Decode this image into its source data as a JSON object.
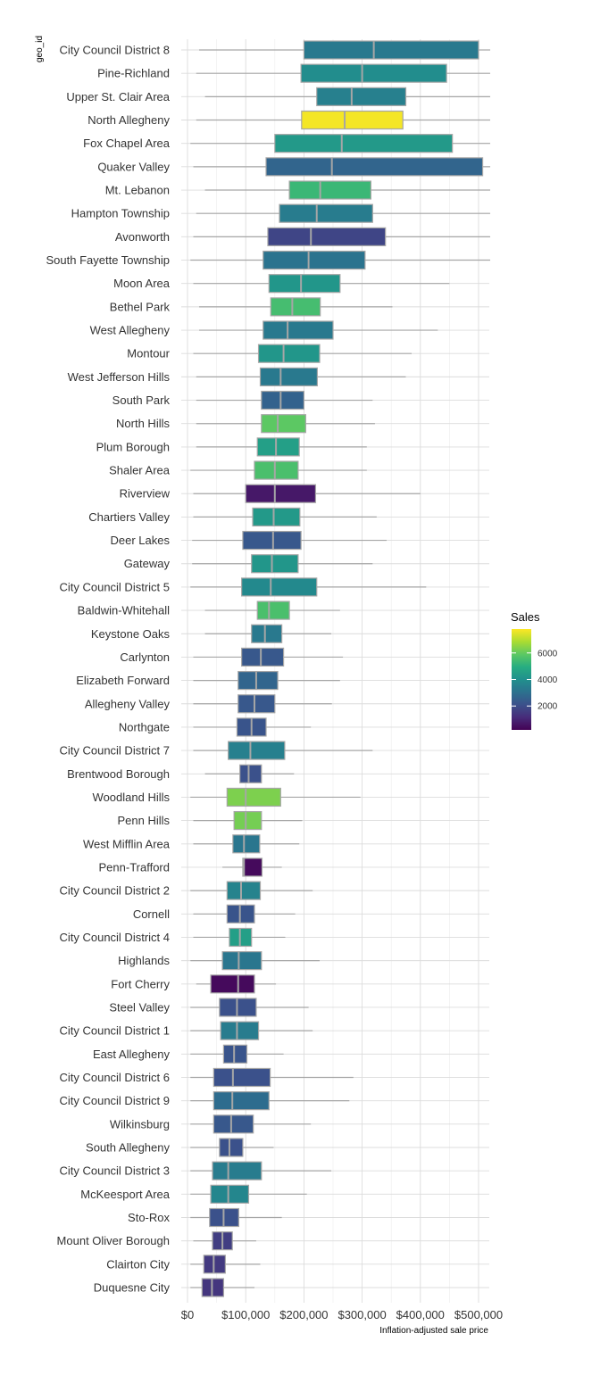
{
  "chart_data": {
    "type": "boxplot",
    "title": "",
    "xlabel": "Inflation-adjusted sale price",
    "ylabel": "geo_id",
    "xlim": [
      0,
      520000
    ],
    "x_ticks": [
      0,
      100000,
      200000,
      300000,
      400000,
      500000
    ],
    "x_tick_labels": [
      "$0",
      "$100,000",
      "$200,000",
      "$300,000",
      "$400,000",
      "$500,000"
    ],
    "grid": true,
    "legend": {
      "title": "Sales",
      "position": "right",
      "type": "colorbar",
      "palette": "viridis",
      "min": 200,
      "max": 7800,
      "ticks": [
        2000,
        4000,
        6000
      ],
      "tick_labels": [
        "2000",
        "4000",
        "6000"
      ]
    },
    "series": [
      {
        "name": "City Council District 8",
        "whisker_low": 20000,
        "q1": 200000,
        "median": 320000,
        "q3": 500000,
        "whisker_high": 520000,
        "sales": 3300
      },
      {
        "name": "Pine-Richland",
        "whisker_low": 15000,
        "q1": 195000,
        "median": 300000,
        "q3": 445000,
        "whisker_high": 520000,
        "sales": 3900
      },
      {
        "name": "Upper St. Clair Area",
        "whisker_low": 30000,
        "q1": 222000,
        "median": 282000,
        "q3": 375000,
        "whisker_high": 520000,
        "sales": 3500
      },
      {
        "name": "North Allegheny",
        "whisker_low": 15000,
        "q1": 196000,
        "median": 270000,
        "q3": 370000,
        "whisker_high": 520000,
        "sales": 7700
      },
      {
        "name": "Fox Chapel Area",
        "whisker_low": 5000,
        "q1": 150000,
        "median": 265000,
        "q3": 455000,
        "whisker_high": 520000,
        "sales": 4300
      },
      {
        "name": "Quaker Valley",
        "whisker_low": 10000,
        "q1": 135000,
        "median": 248000,
        "q3": 507000,
        "whisker_high": 520000,
        "sales": 2700
      },
      {
        "name": "Mt. Lebanon",
        "whisker_low": 30000,
        "q1": 175000,
        "median": 228000,
        "q3": 315000,
        "whisker_high": 520000,
        "sales": 5300
      },
      {
        "name": "Hampton Township",
        "whisker_low": 15000,
        "q1": 158000,
        "median": 222000,
        "q3": 318000,
        "whisker_high": 520000,
        "sales": 3400
      },
      {
        "name": "Avonworth",
        "whisker_low": 10000,
        "q1": 138000,
        "median": 212000,
        "q3": 340000,
        "whisker_high": 520000,
        "sales": 1800
      },
      {
        "name": "South Fayette Township",
        "whisker_low": 5000,
        "q1": 130000,
        "median": 208000,
        "q3": 305000,
        "whisker_high": 520000,
        "sales": 3100
      },
      {
        "name": "Moon Area",
        "whisker_low": 10000,
        "q1": 140000,
        "median": 195000,
        "q3": 262000,
        "whisker_high": 450000,
        "sales": 4200
      },
      {
        "name": "Bethel Park",
        "whisker_low": 20000,
        "q1": 143000,
        "median": 180000,
        "q3": 228000,
        "whisker_high": 352000,
        "sales": 5500
      },
      {
        "name": "West Allegheny",
        "whisker_low": 20000,
        "q1": 130000,
        "median": 172000,
        "q3": 250000,
        "whisker_high": 430000,
        "sales": 3300
      },
      {
        "name": "Montour",
        "whisker_low": 10000,
        "q1": 122000,
        "median": 165000,
        "q3": 227000,
        "whisker_high": 385000,
        "sales": 4200
      },
      {
        "name": "West Jefferson Hills",
        "whisker_low": 15000,
        "q1": 125000,
        "median": 160000,
        "q3": 223000,
        "whisker_high": 375000,
        "sales": 3300
      },
      {
        "name": "South Park",
        "whisker_low": 15000,
        "q1": 127000,
        "median": 160000,
        "q3": 200000,
        "whisker_high": 318000,
        "sales": 2600
      },
      {
        "name": "North Hills",
        "whisker_low": 15000,
        "q1": 127000,
        "median": 155000,
        "q3": 203000,
        "whisker_high": 322000,
        "sales": 5900
      },
      {
        "name": "Plum Borough",
        "whisker_low": 15000,
        "q1": 120000,
        "median": 152000,
        "q3": 192000,
        "whisker_high": 308000,
        "sales": 4500
      },
      {
        "name": "Shaler Area",
        "whisker_low": 5000,
        "q1": 115000,
        "median": 150000,
        "q3": 190000,
        "whisker_high": 308000,
        "sales": 5600
      },
      {
        "name": "Riverview",
        "whisker_low": 10000,
        "q1": 100000,
        "median": 150000,
        "q3": 220000,
        "whisker_high": 400000,
        "sales": 700
      },
      {
        "name": "Chartiers Valley",
        "whisker_low": 10000,
        "q1": 112000,
        "median": 148000,
        "q3": 193000,
        "whisker_high": 325000,
        "sales": 4300
      },
      {
        "name": "Deer Lakes",
        "whisker_low": 8000,
        "q1": 95000,
        "median": 147000,
        "q3": 195000,
        "whisker_high": 342000,
        "sales": 2300
      },
      {
        "name": "Gateway",
        "whisker_low": 8000,
        "q1": 110000,
        "median": 145000,
        "q3": 190000,
        "whisker_high": 318000,
        "sales": 4200
      },
      {
        "name": "City Council District 5",
        "whisker_low": 5000,
        "q1": 93000,
        "median": 143000,
        "q3": 222000,
        "whisker_high": 410000,
        "sales": 3800
      },
      {
        "name": "Baldwin-Whitehall",
        "whisker_low": 30000,
        "q1": 120000,
        "median": 140000,
        "q3": 175000,
        "whisker_high": 262000,
        "sales": 5600
      },
      {
        "name": "Keystone Oaks",
        "whisker_low": 30000,
        "q1": 110000,
        "median": 133000,
        "q3": 162000,
        "whisker_high": 247000,
        "sales": 3300
      },
      {
        "name": "Carlynton",
        "whisker_low": 10000,
        "q1": 93000,
        "median": 126000,
        "q3": 165000,
        "whisker_high": 267000,
        "sales": 2300
      },
      {
        "name": "Elizabeth Forward",
        "whisker_low": 10000,
        "q1": 87000,
        "median": 118000,
        "q3": 155000,
        "whisker_high": 262000,
        "sales": 2700
      },
      {
        "name": "Allegheny Valley",
        "whisker_low": 10000,
        "q1": 87000,
        "median": 115000,
        "q3": 150000,
        "whisker_high": 248000,
        "sales": 2300
      },
      {
        "name": "Northgate",
        "whisker_low": 10000,
        "q1": 85000,
        "median": 110000,
        "q3": 135000,
        "whisker_high": 212000,
        "sales": 2200
      },
      {
        "name": "City Council District 7",
        "whisker_low": 10000,
        "q1": 70000,
        "median": 108000,
        "q3": 167000,
        "whisker_high": 318000,
        "sales": 3500
      },
      {
        "name": "Brentwood Borough",
        "whisker_low": 30000,
        "q1": 90000,
        "median": 105000,
        "q3": 127000,
        "whisker_high": 183000,
        "sales": 2100
      },
      {
        "name": "Woodland Hills",
        "whisker_low": 5000,
        "q1": 68000,
        "median": 100000,
        "q3": 160000,
        "whisker_high": 297000,
        "sales": 6300
      },
      {
        "name": "Penn Hills",
        "whisker_low": 10000,
        "q1": 80000,
        "median": 100000,
        "q3": 127000,
        "whisker_high": 197000,
        "sales": 6200
      },
      {
        "name": "West Mifflin Area",
        "whisker_low": 10000,
        "q1": 78000,
        "median": 97000,
        "q3": 124000,
        "whisker_high": 192000,
        "sales": 3200
      },
      {
        "name": "Penn-Trafford",
        "whisker_low": 60000,
        "q1": 95000,
        "median": 97000,
        "q3": 128000,
        "whisker_high": 162000,
        "sales": 400
      },
      {
        "name": "City Council District 2",
        "whisker_low": 5000,
        "q1": 68000,
        "median": 92000,
        "q3": 125000,
        "whisker_high": 215000,
        "sales": 3600
      },
      {
        "name": "Cornell",
        "whisker_low": 10000,
        "q1": 68000,
        "median": 90000,
        "q3": 115000,
        "whisker_high": 185000,
        "sales": 2200
      },
      {
        "name": "City Council District 4",
        "whisker_low": 10000,
        "q1": 72000,
        "median": 90000,
        "q3": 110000,
        "whisker_high": 168000,
        "sales": 4500
      },
      {
        "name": "Highlands",
        "whisker_low": 5000,
        "q1": 60000,
        "median": 88000,
        "q3": 127000,
        "whisker_high": 227000,
        "sales": 3200
      },
      {
        "name": "Fort Cherry",
        "whisker_low": 15000,
        "q1": 40000,
        "median": 87000,
        "q3": 115000,
        "whisker_high": 152000,
        "sales": 400
      },
      {
        "name": "Steel Valley",
        "whisker_low": 5000,
        "q1": 55000,
        "median": 85000,
        "q3": 118000,
        "whisker_high": 208000,
        "sales": 2100
      },
      {
        "name": "City Council District 1",
        "whisker_low": 5000,
        "q1": 57000,
        "median": 85000,
        "q3": 122000,
        "whisker_high": 215000,
        "sales": 3400
      },
      {
        "name": "East Allegheny",
        "whisker_low": 5000,
        "q1": 62000,
        "median": 80000,
        "q3": 102000,
        "whisker_high": 165000,
        "sales": 2200
      },
      {
        "name": "City Council District 6",
        "whisker_low": 5000,
        "q1": 45000,
        "median": 78000,
        "q3": 142000,
        "whisker_high": 285000,
        "sales": 2100
      },
      {
        "name": "City Council District 9",
        "whisker_low": 5000,
        "q1": 45000,
        "median": 77000,
        "q3": 140000,
        "whisker_high": 278000,
        "sales": 2900
      },
      {
        "name": "Wilkinsburg",
        "whisker_low": 5000,
        "q1": 45000,
        "median": 75000,
        "q3": 113000,
        "whisker_high": 212000,
        "sales": 2300
      },
      {
        "name": "South Allegheny",
        "whisker_low": 5000,
        "q1": 55000,
        "median": 72000,
        "q3": 95000,
        "whisker_high": 148000,
        "sales": 2100
      },
      {
        "name": "City Council District 3",
        "whisker_low": 5000,
        "q1": 43000,
        "median": 70000,
        "q3": 127000,
        "whisker_high": 247000,
        "sales": 3400
      },
      {
        "name": "McKeesport Area",
        "whisker_low": 5000,
        "q1": 40000,
        "median": 70000,
        "q3": 105000,
        "whisker_high": 205000,
        "sales": 3700
      },
      {
        "name": "Sto-Rox",
        "whisker_low": 5000,
        "q1": 38000,
        "median": 62000,
        "q3": 88000,
        "whisker_high": 162000,
        "sales": 2100
      },
      {
        "name": "Mount Oliver Borough",
        "whisker_low": 10000,
        "q1": 43000,
        "median": 60000,
        "q3": 77000,
        "whisker_high": 118000,
        "sales": 1600
      },
      {
        "name": "Clairton City",
        "whisker_low": 5000,
        "q1": 28000,
        "median": 45000,
        "q3": 65000,
        "whisker_high": 125000,
        "sales": 1500
      },
      {
        "name": "Duquesne City",
        "whisker_low": 5000,
        "q1": 25000,
        "median": 42000,
        "q3": 62000,
        "whisker_high": 115000,
        "sales": 1400
      }
    ]
  }
}
